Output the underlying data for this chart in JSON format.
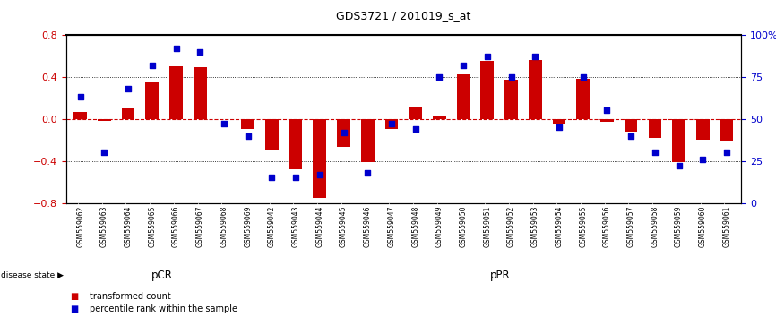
{
  "title": "GDS3721 / 201019_s_at",
  "samples": [
    "GSM559062",
    "GSM559063",
    "GSM559064",
    "GSM559065",
    "GSM559066",
    "GSM559067",
    "GSM559068",
    "GSM559069",
    "GSM559042",
    "GSM559043",
    "GSM559044",
    "GSM559045",
    "GSM559046",
    "GSM559047",
    "GSM559048",
    "GSM559049",
    "GSM559050",
    "GSM559051",
    "GSM559052",
    "GSM559053",
    "GSM559054",
    "GSM559055",
    "GSM559056",
    "GSM559057",
    "GSM559058",
    "GSM559059",
    "GSM559060",
    "GSM559061"
  ],
  "red_values": [
    0.07,
    -0.02,
    0.1,
    0.35,
    0.5,
    0.49,
    0.0,
    -0.1,
    -0.3,
    -0.48,
    -0.75,
    -0.27,
    -0.41,
    -0.1,
    0.12,
    0.02,
    0.42,
    0.55,
    0.37,
    0.56,
    -0.05,
    0.38,
    -0.03,
    -0.12,
    -0.18,
    -0.41,
    -0.2,
    -0.21
  ],
  "blue_values": [
    63,
    30,
    68,
    82,
    92,
    90,
    47,
    40,
    15,
    15,
    17,
    42,
    18,
    47,
    44,
    75,
    82,
    87,
    75,
    87,
    45,
    75,
    55,
    40,
    30,
    22,
    26,
    30
  ],
  "pCR_count": 8,
  "ylim_left": [
    -0.8,
    0.8
  ],
  "ylim_right": [
    0,
    100
  ],
  "yticks_left": [
    -0.8,
    -0.4,
    0.0,
    0.4,
    0.8
  ],
  "yticks_right": [
    0,
    25,
    50,
    75,
    100
  ],
  "ytick_labels_right": [
    "0",
    "25",
    "50",
    "75",
    "100%"
  ],
  "zero_line_color": "#cc0000",
  "bar_color": "#cc0000",
  "dot_color": "#0000cc",
  "pCR_color": "#b8f0b0",
  "pPR_color": "#5cd65c",
  "legend_red": "transformed count",
  "legend_blue": "percentile rank within the sample",
  "bg_color": "#ffffff",
  "bar_width": 0.55,
  "dot_size": 18
}
